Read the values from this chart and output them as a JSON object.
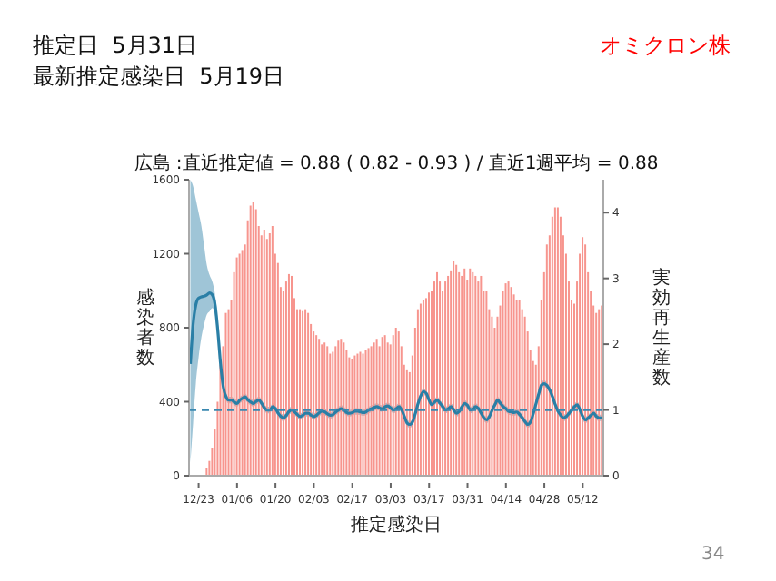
{
  "chart_data": {
    "type": "bar",
    "title": "広島 :直近推定値 = 0.88 ( 0.82 - 0.93 ) / 直近1週平均 = 0.88",
    "xlabel": "推定感染日",
    "ylabel": "感染者数",
    "y2label": "実効再生産数",
    "annotations": [
      "推定日  5月31日",
      "最新推定感染日  5月19日",
      "オミクロン株",
      "34"
    ],
    "categories": [
      null,
      null,
      null,
      "12/23",
      null,
      null,
      null,
      null,
      null,
      null,
      null,
      null,
      null,
      null,
      null,
      null,
      null,
      "01/06",
      null,
      null,
      null,
      null,
      null,
      null,
      null,
      null,
      null,
      null,
      null,
      null,
      null,
      "01/20",
      null,
      null,
      null,
      null,
      null,
      null,
      null,
      null,
      null,
      null,
      null,
      null,
      null,
      "02/03",
      null,
      null,
      null,
      null,
      null,
      null,
      null,
      null,
      null,
      null,
      null,
      null,
      null,
      "02/17",
      null,
      null,
      null,
      null,
      null,
      null,
      null,
      null,
      null,
      null,
      null,
      null,
      null,
      "03/03",
      null,
      null,
      null,
      null,
      null,
      null,
      null,
      null,
      null,
      null,
      null,
      null,
      null,
      "03/17",
      null,
      null,
      null,
      null,
      null,
      null,
      null,
      null,
      null,
      null,
      null,
      null,
      null,
      "03/31",
      null,
      null,
      null,
      null,
      null,
      null,
      null,
      null,
      null,
      null,
      null,
      null,
      null,
      "04/14",
      null,
      null,
      null,
      null,
      null,
      null,
      null,
      null,
      null,
      null,
      null,
      null,
      null,
      "04/28",
      null,
      null,
      null,
      null,
      null,
      null,
      null,
      null,
      null,
      null,
      null,
      null,
      null,
      "05/12",
      null,
      null,
      null,
      null,
      null,
      null,
      null
    ],
    "series": [
      {
        "color": "#f7958e",
        "values": [
          0,
          0,
          0,
          0,
          0,
          0,
          40,
          80,
          150,
          250,
          400,
          600,
          700,
          880,
          900,
          950,
          1100,
          1180,
          1200,
          1220,
          1250,
          1380,
          1460,
          1480,
          1440,
          1350,
          1300,
          1330,
          1280,
          1310,
          1350,
          1200,
          1150,
          1020,
          1000,
          1050,
          1090,
          1080,
          960,
          900,
          900,
          890,
          900,
          880,
          820,
          780,
          760,
          740,
          710,
          720,
          700,
          660,
          670,
          700,
          730,
          740,
          720,
          680,
          640,
          630,
          650,
          660,
          670,
          660,
          680,
          690,
          700,
          720,
          740,
          700,
          750,
          760,
          720,
          710,
          760,
          800,
          780,
          700,
          600,
          570,
          560,
          650,
          800,
          900,
          930,
          950,
          960,
          990,
          1000,
          1050,
          1100,
          1050,
          1000,
          1050,
          1080,
          1110,
          1160,
          1140,
          1100,
          1080,
          1120,
          1060,
          1120,
          1100,
          1080,
          1050,
          1080,
          1000,
          1000,
          900,
          860,
          800,
          860,
          920,
          1000,
          1040,
          1050,
          1020,
          980,
          950,
          950,
          900,
          860,
          780,
          680,
          620,
          600,
          700,
          950,
          1100,
          1250,
          1300,
          1400,
          1450,
          1450,
          1400,
          1300,
          1200,
          1050,
          950,
          930,
          1050,
          1200,
          1290,
          1250,
          1100,
          1000,
          920,
          880,
          900,
          920
        ]
      },
      {
        "type": "line",
        "axis": "y2",
        "color": "#2a7fa6",
        "values": [
          1.7,
          2.3,
          2.6,
          2.7,
          2.72,
          2.73,
          2.75,
          2.78,
          2.75,
          2.6,
          2.2,
          1.7,
          1.35,
          1.2,
          1.15,
          1.15,
          1.12,
          1.1,
          1.15,
          1.18,
          1.2,
          1.15,
          1.12,
          1.1,
          1.13,
          1.15,
          1.1,
          1.03,
          1.0,
          1.0,
          1.05,
          1.02,
          0.95,
          0.9,
          0.88,
          0.92,
          0.98,
          1.0,
          0.97,
          0.93,
          0.9,
          0.92,
          0.95,
          0.95,
          0.92,
          0.9,
          0.92,
          0.96,
          0.98,
          0.97,
          0.94,
          0.92,
          0.93,
          0.97,
          1.0,
          1.02,
          1.0,
          0.96,
          0.95,
          0.96,
          0.98,
          0.98,
          0.97,
          0.96,
          0.97,
          1.0,
          1.02,
          1.04,
          1.05,
          1.03,
          1.02,
          1.05,
          1.06,
          1.03,
          1.0,
          1.02,
          1.05,
          1.0,
          0.9,
          0.8,
          0.78,
          0.82,
          0.95,
          1.1,
          1.22,
          1.28,
          1.25,
          1.15,
          1.08,
          1.12,
          1.15,
          1.1,
          1.05,
          1.0,
          1.02,
          1.05,
          1.0,
          0.95,
          0.98,
          1.05,
          1.1,
          1.07,
          1.0,
          1.02,
          1.05,
          1.02,
          0.95,
          0.88,
          0.85,
          0.9,
          1.0,
          1.08,
          1.15,
          1.1,
          1.05,
          1.02,
          0.98,
          0.97,
          0.96,
          0.97,
          0.93,
          0.88,
          0.82,
          0.78,
          0.82,
          0.95,
          1.1,
          1.25,
          1.38,
          1.4,
          1.37,
          1.3,
          1.2,
          1.08,
          0.98,
          0.92,
          0.88,
          0.9,
          0.95,
          1.0,
          1.05,
          1.08,
          1.0,
          0.9,
          0.85,
          0.88,
          0.92,
          0.95,
          0.9,
          0.88,
          0.88
        ],
        "lower": [
          0.2,
          0.8,
          1.4,
          1.8,
          2.1,
          2.3,
          2.45,
          2.5,
          2.55,
          2.45,
          2.05,
          1.6,
          1.3,
          1.15,
          1.1,
          1.1,
          1.07,
          1.05,
          1.1,
          1.13,
          1.15,
          1.1,
          1.07,
          1.05,
          1.08,
          1.1,
          1.05,
          0.98,
          0.95,
          0.95,
          1.0,
          0.97,
          0.9,
          0.85,
          0.83,
          0.87,
          0.93,
          0.95,
          0.92,
          0.88,
          0.85,
          0.87,
          0.9,
          0.9,
          0.87,
          0.85,
          0.87,
          0.91,
          0.93,
          0.92,
          0.89,
          0.87,
          0.88,
          0.92,
          0.95,
          0.97,
          0.95,
          0.91,
          0.9,
          0.91,
          0.93,
          0.93,
          0.92,
          0.91,
          0.92,
          0.95,
          0.97,
          0.99,
          1.0,
          0.98,
          0.97,
          1.0,
          1.01,
          0.98,
          0.95,
          0.97,
          1.0,
          0.95,
          0.85,
          0.75,
          0.73,
          0.77,
          0.9,
          1.05,
          1.17,
          1.23,
          1.2,
          1.1,
          1.03,
          1.07,
          1.1,
          1.05,
          1.0,
          0.95,
          0.97,
          1.0,
          0.95,
          0.9,
          0.93,
          1.0,
          1.05,
          1.02,
          0.95,
          0.97,
          1.0,
          0.97,
          0.9,
          0.83,
          0.8,
          0.85,
          0.95,
          1.03,
          1.1,
          1.05,
          1.0,
          0.97,
          0.93,
          0.92,
          0.91,
          0.92,
          0.88,
          0.83,
          0.77,
          0.73,
          0.77,
          0.9,
          1.05,
          1.2,
          1.33,
          1.35,
          1.32,
          1.25,
          1.15,
          1.03,
          0.93,
          0.87,
          0.83,
          0.85,
          0.9,
          0.95,
          1.0,
          1.03,
          0.95,
          0.85,
          0.8,
          0.83,
          0.87,
          0.9,
          0.85,
          0.83,
          0.83
        ],
        "upper": [
          4.5,
          4.4,
          4.2,
          4.0,
          3.8,
          3.5,
          3.2,
          3.05,
          2.95,
          2.75,
          2.35,
          1.8,
          1.4,
          1.25,
          1.2,
          1.2,
          1.17,
          1.15,
          1.2,
          1.23,
          1.25,
          1.2,
          1.17,
          1.15,
          1.18,
          1.2,
          1.15,
          1.08,
          1.05,
          1.05,
          1.1,
          1.07,
          1.0,
          0.95,
          0.93,
          0.97,
          1.03,
          1.05,
          1.02,
          0.98,
          0.95,
          0.97,
          1.0,
          1.0,
          0.97,
          0.95,
          0.97,
          1.01,
          1.03,
          1.02,
          0.99,
          0.97,
          0.98,
          1.02,
          1.05,
          1.07,
          1.05,
          1.01,
          1.0,
          1.01,
          1.03,
          1.03,
          1.02,
          1.01,
          1.02,
          1.05,
          1.07,
          1.09,
          1.1,
          1.08,
          1.07,
          1.1,
          1.11,
          1.08,
          1.05,
          1.07,
          1.1,
          1.05,
          0.95,
          0.85,
          0.83,
          0.87,
          1.0,
          1.15,
          1.27,
          1.33,
          1.3,
          1.2,
          1.13,
          1.17,
          1.2,
          1.15,
          1.1,
          1.05,
          1.07,
          1.1,
          1.05,
          1.0,
          1.03,
          1.1,
          1.15,
          1.12,
          1.05,
          1.07,
          1.1,
          1.07,
          1.0,
          0.93,
          0.9,
          0.95,
          1.05,
          1.13,
          1.2,
          1.15,
          1.1,
          1.07,
          1.03,
          1.02,
          1.01,
          1.02,
          0.98,
          0.93,
          0.87,
          0.83,
          0.87,
          1.0,
          1.15,
          1.3,
          1.43,
          1.45,
          1.42,
          1.35,
          1.25,
          1.13,
          1.03,
          0.97,
          0.93,
          0.95,
          1.0,
          1.05,
          1.1,
          1.13,
          1.05,
          0.95,
          0.9,
          0.93,
          0.97,
          1.0,
          0.95,
          0.93,
          0.93
        ]
      }
    ],
    "ylim": [
      0,
      1600
    ],
    "yticks": [
      0,
      400,
      800,
      1200,
      1600
    ],
    "y2lim": [
      0,
      4.5
    ],
    "y2ticks": [
      0,
      1,
      2,
      3,
      4
    ],
    "ref_lines": [
      {
        "axis": "y2",
        "value": 1,
        "color": "#3a88b0",
        "line_style": "dashed"
      }
    ],
    "grid": false,
    "legend": false
  }
}
